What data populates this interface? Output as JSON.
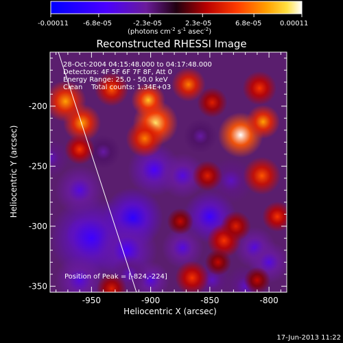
{
  "colorbar": {
    "tick_labels": [
      "-0.00011",
      "-6.8e-05",
      "-2.3e-05",
      "2.3e-05",
      "6.8e-05",
      "0.00011"
    ],
    "unit_label": "(photons cm",
    "unit_sup1": "-2",
    "unit_mid": " s",
    "unit_sup2": "-1",
    "unit_tail": " asec",
    "unit_sup3": "-2",
    "unit_close": ")"
  },
  "chart_data": {
    "type": "heatmap",
    "title": "Reconstructed RHESSI Image",
    "xlabel": "Heliocentric X (arcsec)",
    "ylabel": "Heliocentric Y (arcsec)",
    "xlim": [
      -985,
      -785
    ],
    "ylim": [
      -355,
      -155
    ],
    "x_ticks": [
      -950,
      -900,
      -850,
      -800
    ],
    "x_tick_labels": [
      "-950",
      "-900",
      "-850",
      "-800"
    ],
    "y_ticks": [
      -350,
      -300,
      -250,
      -200
    ],
    "y_tick_labels": [
      "-350",
      "-300",
      "-250",
      "-200"
    ],
    "colorbar_range": [
      -0.00011,
      0.00011
    ],
    "annotations": [
      "28-Oct-2004 04:15:48.000 to 04:17:48.000",
      "Detectors: 4F 5F 6F 7F 8F, Att 0",
      "Energy Range: 25.0 - 50.0 keV",
      "Clean    Total counts: 1.34E+03"
    ],
    "peak_label": "Position of Peak = [-824,-224]",
    "peak": [
      -824,
      -224
    ],
    "limb_line": [
      [
        -978,
        -155
      ],
      [
        -912,
        -355
      ]
    ],
    "blobs": [
      {
        "x": -957,
        "y": -307,
        "v": -0.00011,
        "s": 9
      },
      {
        "x": -950,
        "y": -310,
        "v": -7e-05,
        "s": 22
      },
      {
        "x": -915,
        "y": -293,
        "v": -8e-05,
        "s": 16
      },
      {
        "x": -920,
        "y": -320,
        "v": -6e-05,
        "s": 16
      },
      {
        "x": -897,
        "y": -253,
        "v": -6e-05,
        "s": 14
      },
      {
        "x": -873,
        "y": -258,
        "v": -5e-05,
        "s": 12
      },
      {
        "x": -850,
        "y": -292,
        "v": -7e-05,
        "s": 14
      },
      {
        "x": -873,
        "y": -318,
        "v": -5e-05,
        "s": 11
      },
      {
        "x": -812,
        "y": -318,
        "v": -5e-05,
        "s": 11
      },
      {
        "x": -800,
        "y": -330,
        "v": -5e-05,
        "s": 11
      },
      {
        "x": -832,
        "y": -262,
        "v": -4e-05,
        "s": 12
      },
      {
        "x": -960,
        "y": -270,
        "v": -5e-05,
        "s": 13
      },
      {
        "x": -900,
        "y": -345,
        "v": -5e-05,
        "s": 10
      },
      {
        "x": -960,
        "y": -345,
        "v": -5e-05,
        "s": 13
      },
      {
        "x": -820,
        "y": -350,
        "v": -4e-05,
        "s": 11
      },
      {
        "x": -985,
        "y": -243,
        "v": -4e-05,
        "s": 10
      },
      {
        "x": -858,
        "y": -225,
        "v": -3e-05,
        "s": 9
      },
      {
        "x": -848,
        "y": -345,
        "v": -4e-05,
        "s": 10
      },
      {
        "x": -940,
        "y": -238,
        "v": -3e-05,
        "s": 9
      },
      {
        "x": -918,
        "y": -340,
        "v": -4e-05,
        "s": 10
      },
      {
        "x": -824,
        "y": -224,
        "v": 0.00011,
        "s": 12
      },
      {
        "x": -805,
        "y": -213,
        "v": 8e-05,
        "s": 9
      },
      {
        "x": -896,
        "y": -214,
        "v": 0.0001,
        "s": 12
      },
      {
        "x": -902,
        "y": -195,
        "v": 9e-05,
        "s": 9
      },
      {
        "x": -905,
        "y": -227,
        "v": 7e-05,
        "s": 10
      },
      {
        "x": -972,
        "y": -196,
        "v": 8e-05,
        "s": 11
      },
      {
        "x": -958,
        "y": -214,
        "v": 8e-05,
        "s": 10
      },
      {
        "x": -960,
        "y": -236,
        "v": 5e-05,
        "s": 8
      },
      {
        "x": -933,
        "y": -186,
        "v": 6e-05,
        "s": 9
      },
      {
        "x": -868,
        "y": -182,
        "v": 7e-05,
        "s": 9
      },
      {
        "x": -848,
        "y": -197,
        "v": 4e-05,
        "s": 8
      },
      {
        "x": -808,
        "y": -185,
        "v": 5e-05,
        "s": 9
      },
      {
        "x": -852,
        "y": -258,
        "v": 4e-05,
        "s": 8
      },
      {
        "x": -806,
        "y": -258,
        "v": 6e-05,
        "s": 10
      },
      {
        "x": -793,
        "y": -292,
        "v": 5e-05,
        "s": 8
      },
      {
        "x": -838,
        "y": -312,
        "v": 5e-05,
        "s": 9
      },
      {
        "x": -828,
        "y": -300,
        "v": 4e-05,
        "s": 8
      },
      {
        "x": -865,
        "y": -343,
        "v": 5e-05,
        "s": 9
      },
      {
        "x": -843,
        "y": -330,
        "v": 3e-05,
        "s": 7
      },
      {
        "x": -933,
        "y": -352,
        "v": 4e-05,
        "s": 8
      },
      {
        "x": -875,
        "y": -296,
        "v": 3e-05,
        "s": 7
      },
      {
        "x": -810,
        "y": -345,
        "v": 3e-05,
        "s": 7
      }
    ]
  },
  "footer": {
    "timestamp": "17-Jun-2013 11:22"
  }
}
